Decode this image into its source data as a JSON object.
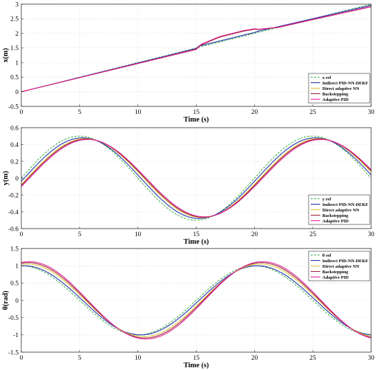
{
  "chart_data": [
    {
      "type": "line",
      "xlabel": "Time (s)",
      "ylabel": "x(m)",
      "xlim": [
        0,
        30
      ],
      "ylim": [
        -0.5,
        3
      ],
      "xticks": [
        0,
        5,
        10,
        15,
        20,
        25,
        30
      ],
      "yticks": [
        -0.5,
        0,
        0.5,
        1,
        1.5,
        2,
        2.5,
        3
      ],
      "grid": true,
      "legend_position": "bottom-right",
      "series": [
        {
          "name": "x ref",
          "color": "#3cb44b",
          "dash": true,
          "x": [
            0,
            15,
            20,
            30
          ],
          "y": [
            0,
            1.5,
            2.0,
            3.0
          ]
        },
        {
          "name": "Indirect PID-NN-DEKF",
          "color": "#1f2fa8",
          "x": [
            0,
            15,
            15.2,
            20,
            20.3,
            30
          ],
          "y": [
            0.0,
            1.48,
            1.56,
            2.03,
            2.07,
            2.96
          ]
        },
        {
          "name": "Direct adaptive NN",
          "color": "#d8c840",
          "x": [
            0,
            15,
            15.4,
            17,
            19,
            20,
            20.3,
            22,
            25,
            30
          ],
          "y": [
            0.0,
            1.45,
            1.6,
            1.87,
            2.07,
            2.14,
            2.13,
            2.2,
            2.47,
            2.91
          ]
        },
        {
          "name": "Backstepping",
          "color": "#a0203a",
          "x": [
            0,
            15,
            15.4,
            17,
            19,
            20,
            20.3,
            22,
            25,
            30
          ],
          "y": [
            0.0,
            1.45,
            1.6,
            1.87,
            2.07,
            2.14,
            2.13,
            2.2,
            2.47,
            2.91
          ]
        },
        {
          "name": "Adaptive PID",
          "color": "#e0209a",
          "x": [
            0,
            15,
            15.4,
            17,
            19,
            20,
            20.3,
            22,
            25,
            30
          ],
          "y": [
            0.0,
            1.46,
            1.62,
            1.89,
            2.09,
            2.16,
            2.14,
            2.21,
            2.48,
            2.92
          ]
        }
      ]
    },
    {
      "type": "line",
      "xlabel": "Time (s)",
      "ylabel": "y(m)",
      "xlim": [
        0,
        30
      ],
      "ylim": [
        -0.6,
        0.6
      ],
      "xticks": [
        0,
        5,
        10,
        15,
        20,
        25,
        30
      ],
      "yticks": [
        -0.6,
        -0.4,
        -0.2,
        0,
        0.2,
        0.4,
        0.6
      ],
      "grid": true,
      "legend_position": "bottom-right",
      "series": [
        {
          "name": "y ref",
          "color": "#3cb44b",
          "dash": true,
          "func": "0.5*sin(2*pi*t/20)"
        },
        {
          "name": "Indirect PID-NN-DEKF",
          "color": "#1f2fa8",
          "func": "0.48*sin(2*pi*(t-0.25)/20)"
        },
        {
          "name": "Direct adaptive NN",
          "color": "#d8c840",
          "func": "0.47*sin(2*pi*(t-0.5)/20)"
        },
        {
          "name": "Backstepping",
          "color": "#a0203a",
          "func": "0.465*sin(2*pi*(t-0.6)/20)"
        },
        {
          "name": "Adaptive PID",
          "color": "#e0209a",
          "func": "0.46*sin(2*pi*(t-0.7)/20)"
        }
      ]
    },
    {
      "type": "line",
      "xlabel": "Time (s)",
      "ylabel": "θ(rad)",
      "xlim": [
        0,
        30
      ],
      "ylim": [
        -1.5,
        1.5
      ],
      "xticks": [
        0,
        5,
        10,
        15,
        20,
        25,
        30
      ],
      "yticks": [
        -1.5,
        -1,
        -0.5,
        0,
        0.5,
        1,
        1.5
      ],
      "grid": true,
      "legend_position": "top-right",
      "series": [
        {
          "name": "θ ref",
          "color": "#3cb44b",
          "dash": true,
          "func": "cos(2*pi*t/20)"
        },
        {
          "name": "Indirect PID-NN-DEKF",
          "color": "#1f2fa8",
          "func": "cos(2*pi*(t-0.25)/20)"
        },
        {
          "name": "Direct adaptive NN",
          "color": "#d8c840",
          "func": "1.05*cos(2*pi*(t-0.5)/20)"
        },
        {
          "name": "Backstepping",
          "color": "#a0203a",
          "func": "1.09*cos(2*pi*(t-0.6)/20)"
        },
        {
          "name": "Adaptive PID",
          "color": "#e0209a",
          "func": "1.12*cos(2*pi*(t-0.7)/20)"
        }
      ]
    }
  ]
}
